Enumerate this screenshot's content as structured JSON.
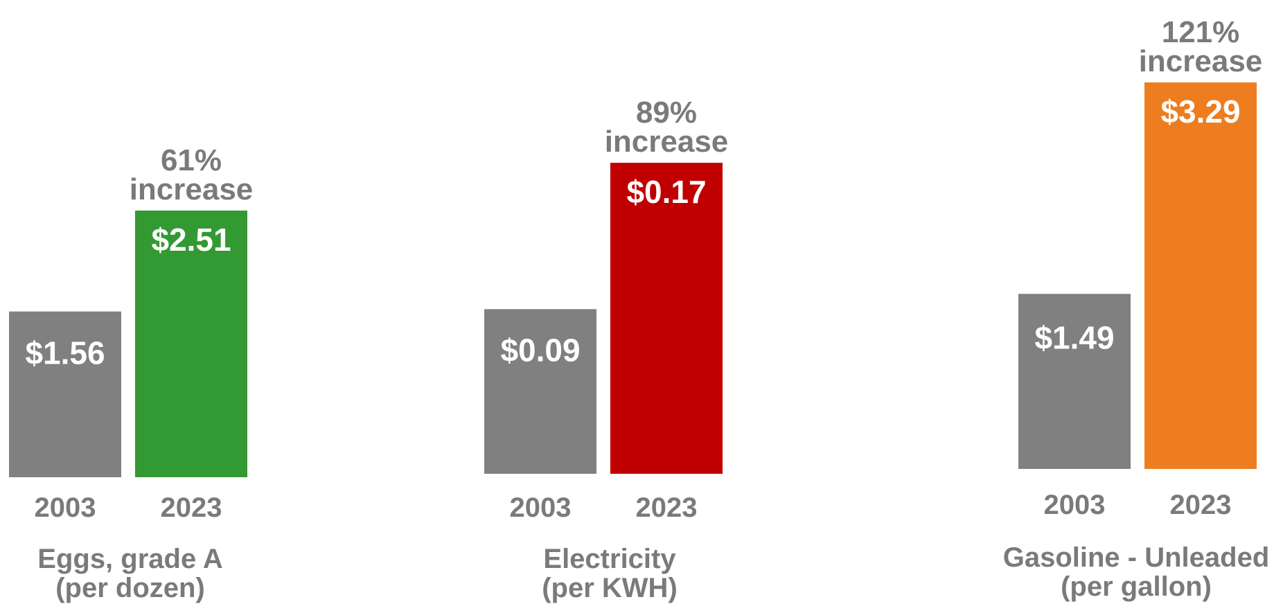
{
  "chart_data": [
    {
      "type": "bar",
      "title": "Eggs, grade A",
      "subtitle": "(per dozen)",
      "categories": [
        "2003",
        "2023"
      ],
      "values": [
        1.56,
        2.51
      ],
      "value_labels": [
        "$1.56",
        "$2.51"
      ],
      "annotation_pct": "61%",
      "annotation_word": "increase",
      "colors": [
        "#808080",
        "#339933"
      ]
    },
    {
      "type": "bar",
      "title": "Electricity",
      "subtitle": "(per KWH)",
      "categories": [
        "2003",
        "2023"
      ],
      "values": [
        0.09,
        0.17
      ],
      "value_labels": [
        "$0.09",
        "$0.17"
      ],
      "annotation_pct": "89%",
      "annotation_word": "increase",
      "colors": [
        "#808080",
        "#c00000"
      ]
    },
    {
      "type": "bar",
      "title": "Gasoline - Unleaded",
      "subtitle": "(per gallon)",
      "categories": [
        "2003",
        "2023"
      ],
      "values": [
        1.49,
        3.29
      ],
      "value_labels": [
        "$1.49",
        "$3.29"
      ],
      "annotation_pct": "121%",
      "annotation_word": "increase",
      "colors": [
        "#808080",
        "#ed7d1f"
      ]
    }
  ]
}
